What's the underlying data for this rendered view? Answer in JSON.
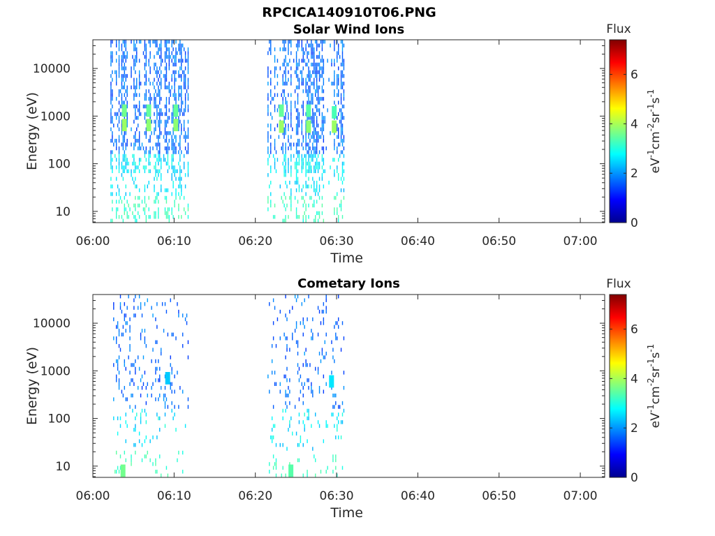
{
  "figure_title": "RPCICA140910T06.PNG",
  "colorbar": {
    "title": "Flux",
    "unit_parts": [
      "eV",
      "-1",
      "cm",
      "-2",
      "sr",
      "-1",
      "s",
      "-1"
    ],
    "range": [
      0,
      7.4
    ],
    "ticks": [
      "0",
      "2",
      "4",
      "6"
    ],
    "colormap": "jet"
  },
  "chart_data": [
    {
      "type": "heatmap",
      "title": "Solar Wind Ions",
      "xlabel": "Time",
      "ylabel": "Energy (eV)",
      "y_scale": "log",
      "xlim": [
        "06:00",
        "07:03"
      ],
      "ylim": [
        5.8,
        40000
      ],
      "x_ticks": [
        "06:00",
        "06:10",
        "06:20",
        "06:30",
        "06:40",
        "06:50",
        "07:00"
      ],
      "y_ticks": [
        "10",
        "100",
        "1000",
        "10000"
      ],
      "data_intervals": [
        [
          "06:02:10",
          "06:11:50"
        ],
        [
          "06:21:30",
          "06:31:00"
        ]
      ],
      "density": 0.55,
      "clusters": [
        {
          "time": "06:03:50",
          "energy": 1300,
          "flux": 3.6
        },
        {
          "time": "06:03:50",
          "energy": 650,
          "flux": 3.9
        },
        {
          "time": "06:06:50",
          "energy": 1300,
          "flux": 3.5
        },
        {
          "time": "06:06:50",
          "energy": 650,
          "flux": 3.8
        },
        {
          "time": "06:10:10",
          "energy": 1300,
          "flux": 3.5
        },
        {
          "time": "06:10:10",
          "energy": 650,
          "flux": 3.8
        },
        {
          "time": "06:23:10",
          "energy": 1300,
          "flux": 3.5
        },
        {
          "time": "06:23:10",
          "energy": 600,
          "flux": 3.9
        },
        {
          "time": "06:26:30",
          "energy": 1300,
          "flux": 3.4
        },
        {
          "time": "06:26:30",
          "energy": 600,
          "flux": 3.8
        },
        {
          "time": "06:29:40",
          "energy": 1200,
          "flux": 3.3
        },
        {
          "time": "06:29:40",
          "energy": 600,
          "flux": 3.9
        }
      ]
    },
    {
      "type": "heatmap",
      "title": "Cometary Ions",
      "xlabel": "Time",
      "ylabel": "Energy (eV)",
      "y_scale": "log",
      "xlim": [
        "06:00",
        "07:03"
      ],
      "ylim": [
        5.8,
        40000
      ],
      "x_ticks": [
        "06:00",
        "06:10",
        "06:20",
        "06:30",
        "06:40",
        "06:50",
        "07:00"
      ],
      "y_ticks": [
        "10",
        "100",
        "1000",
        "10000"
      ],
      "data_intervals": [
        [
          "06:02:10",
          "06:11:50"
        ],
        [
          "06:21:30",
          "06:31:00"
        ]
      ],
      "density": 0.13,
      "clusters": [
        {
          "time": "06:09:10",
          "energy": 700,
          "flux": 2.4
        },
        {
          "time": "06:29:20",
          "energy": 600,
          "flux": 2.6
        },
        {
          "time": "06:03:40",
          "energy": 8,
          "flux": 3.6
        },
        {
          "time": "06:24:20",
          "energy": 8,
          "flux": 3.4
        }
      ]
    }
  ]
}
